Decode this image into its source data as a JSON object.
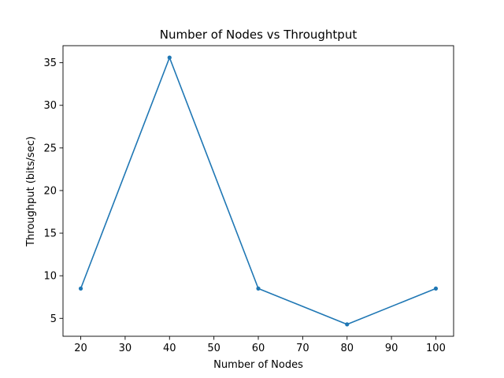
{
  "chart_data": {
    "type": "line",
    "title": "Number of Nodes vs Throughtput",
    "xlabel": "Number of Nodes",
    "ylabel": "Throughput (bits/sec)",
    "x": [
      20,
      40,
      60,
      80,
      100
    ],
    "series": [
      {
        "values": [
          8.5,
          35.6,
          8.5,
          4.3,
          8.5
        ],
        "color": "#1f77b4",
        "marker": "dot"
      }
    ],
    "xlim": [
      16,
      104
    ],
    "ylim": [
      2.9,
      37.0
    ],
    "xticks": [
      20,
      30,
      40,
      50,
      60,
      70,
      80,
      90,
      100
    ],
    "yticks": [
      5,
      10,
      15,
      20,
      25,
      30,
      35
    ],
    "grid": false,
    "legend": "none"
  }
}
